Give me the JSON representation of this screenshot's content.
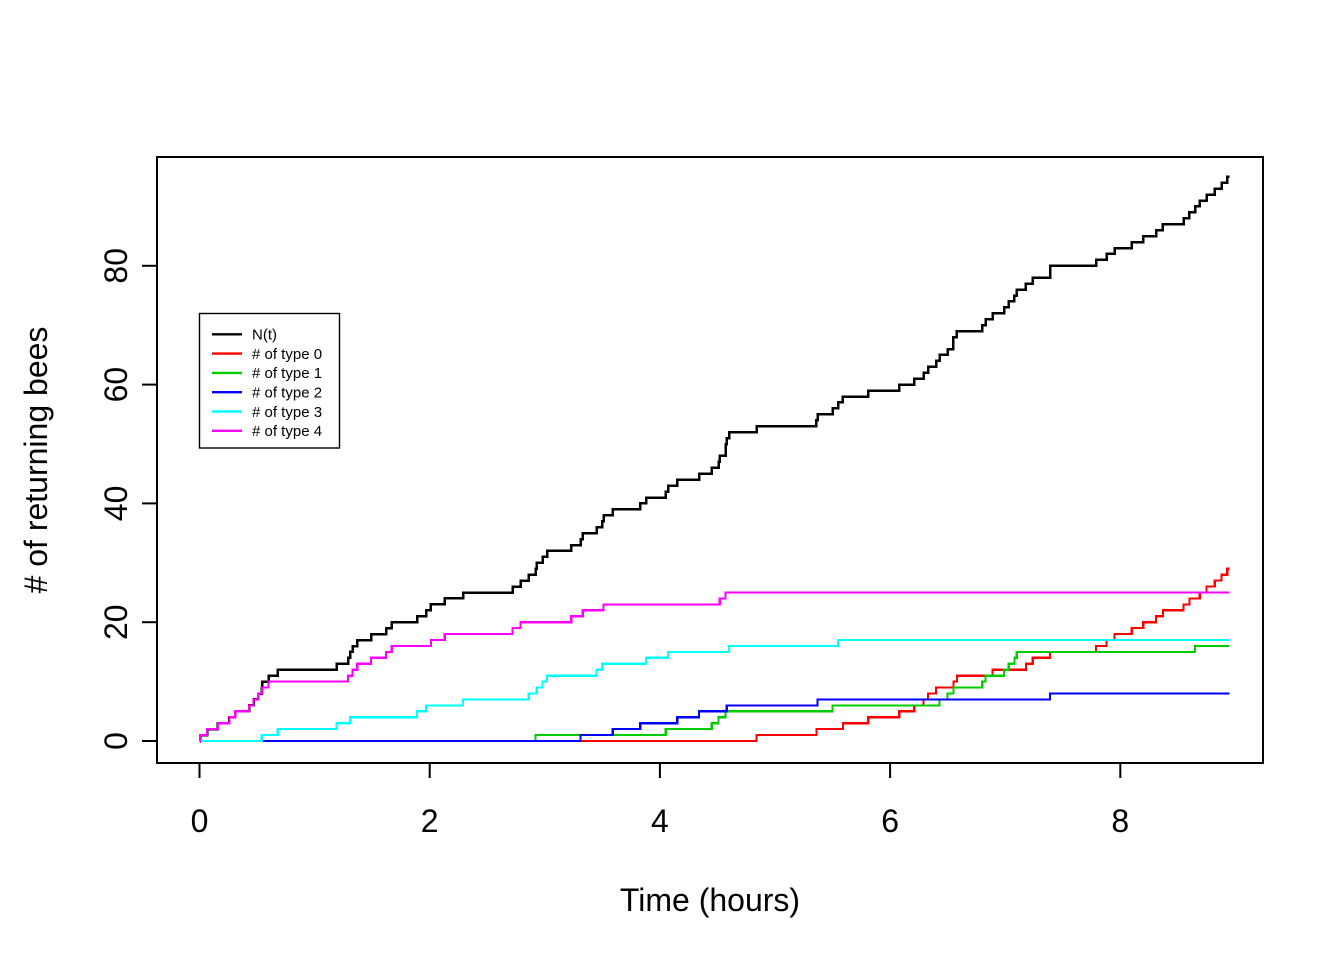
{
  "chart_data": {
    "type": "line",
    "subtype": "step-counting-process",
    "title": "",
    "xlabel": "Time (hours)",
    "ylabel": "# of returning bees",
    "x_ticks": [
      0,
      2,
      4,
      6,
      8
    ],
    "x_tick_labels": [
      "0",
      "2",
      "4",
      "6",
      "8"
    ],
    "y_ticks": [
      0,
      20,
      40,
      60,
      80
    ],
    "y_tick_labels": [
      "0",
      "20",
      "40",
      "60",
      "80"
    ],
    "xlim": [
      -0.36,
      9.25
    ],
    "ylim": [
      -3.7,
      98.2
    ],
    "grid": false,
    "legend_position": "upper-left-inside",
    "t_start": 0,
    "t_end": 8.95,
    "series": [
      {
        "id": "n-of-t",
        "name": "N(t)",
        "color": "#000000",
        "derived_from": "sum of all type series",
        "final_count": 95
      },
      {
        "id": "type-0",
        "name": "# of type 0",
        "color": "#FF0000",
        "final_count": 29,
        "jump_times": [
          4.84,
          5.36,
          5.59,
          5.81,
          6.08,
          6.21,
          6.29,
          6.33,
          6.4,
          6.55,
          6.58,
          6.89,
          7.18,
          7.24,
          7.39,
          7.79,
          7.88,
          7.95,
          8.1,
          8.2,
          8.31,
          8.37,
          8.55,
          8.6,
          8.69,
          8.75,
          8.82,
          8.88,
          8.93
        ]
      },
      {
        "id": "type-1",
        "name": "# of type 1",
        "color": "#00CD00",
        "final_count": 16,
        "jump_times": [
          2.92,
          4.05,
          4.45,
          4.51,
          4.57,
          5.5,
          6.43,
          6.5,
          6.55,
          6.8,
          6.83,
          6.99,
          7.03,
          7.08,
          7.1,
          8.65
        ]
      },
      {
        "id": "type-2",
        "name": "# of type 2",
        "color": "#0000FF",
        "final_count": 8,
        "jump_times": [
          3.31,
          3.59,
          3.83,
          4.15,
          4.34,
          4.58,
          5.37,
          7.39
        ]
      },
      {
        "id": "type-3",
        "name": "# of type 3",
        "color": "#00FFFF",
        "final_count": 17,
        "jump_times": [
          0.54,
          0.68,
          1.19,
          1.31,
          1.89,
          1.97,
          2.29,
          2.86,
          2.93,
          2.98,
          3.02,
          3.45,
          3.5,
          3.88,
          4.07,
          4.6,
          5.55
        ]
      },
      {
        "id": "type-4",
        "name": "# of type 4",
        "color": "#FF00FF",
        "final_count": 25,
        "jump_times": [
          0.005,
          0.065,
          0.16,
          0.26,
          0.31,
          0.43,
          0.47,
          0.51,
          0.545,
          0.6,
          1.29,
          1.33,
          1.37,
          1.49,
          1.62,
          1.67,
          2.01,
          2.13,
          2.72,
          2.79,
          3.23,
          3.33,
          3.51,
          4.52,
          4.57
        ]
      }
    ]
  }
}
